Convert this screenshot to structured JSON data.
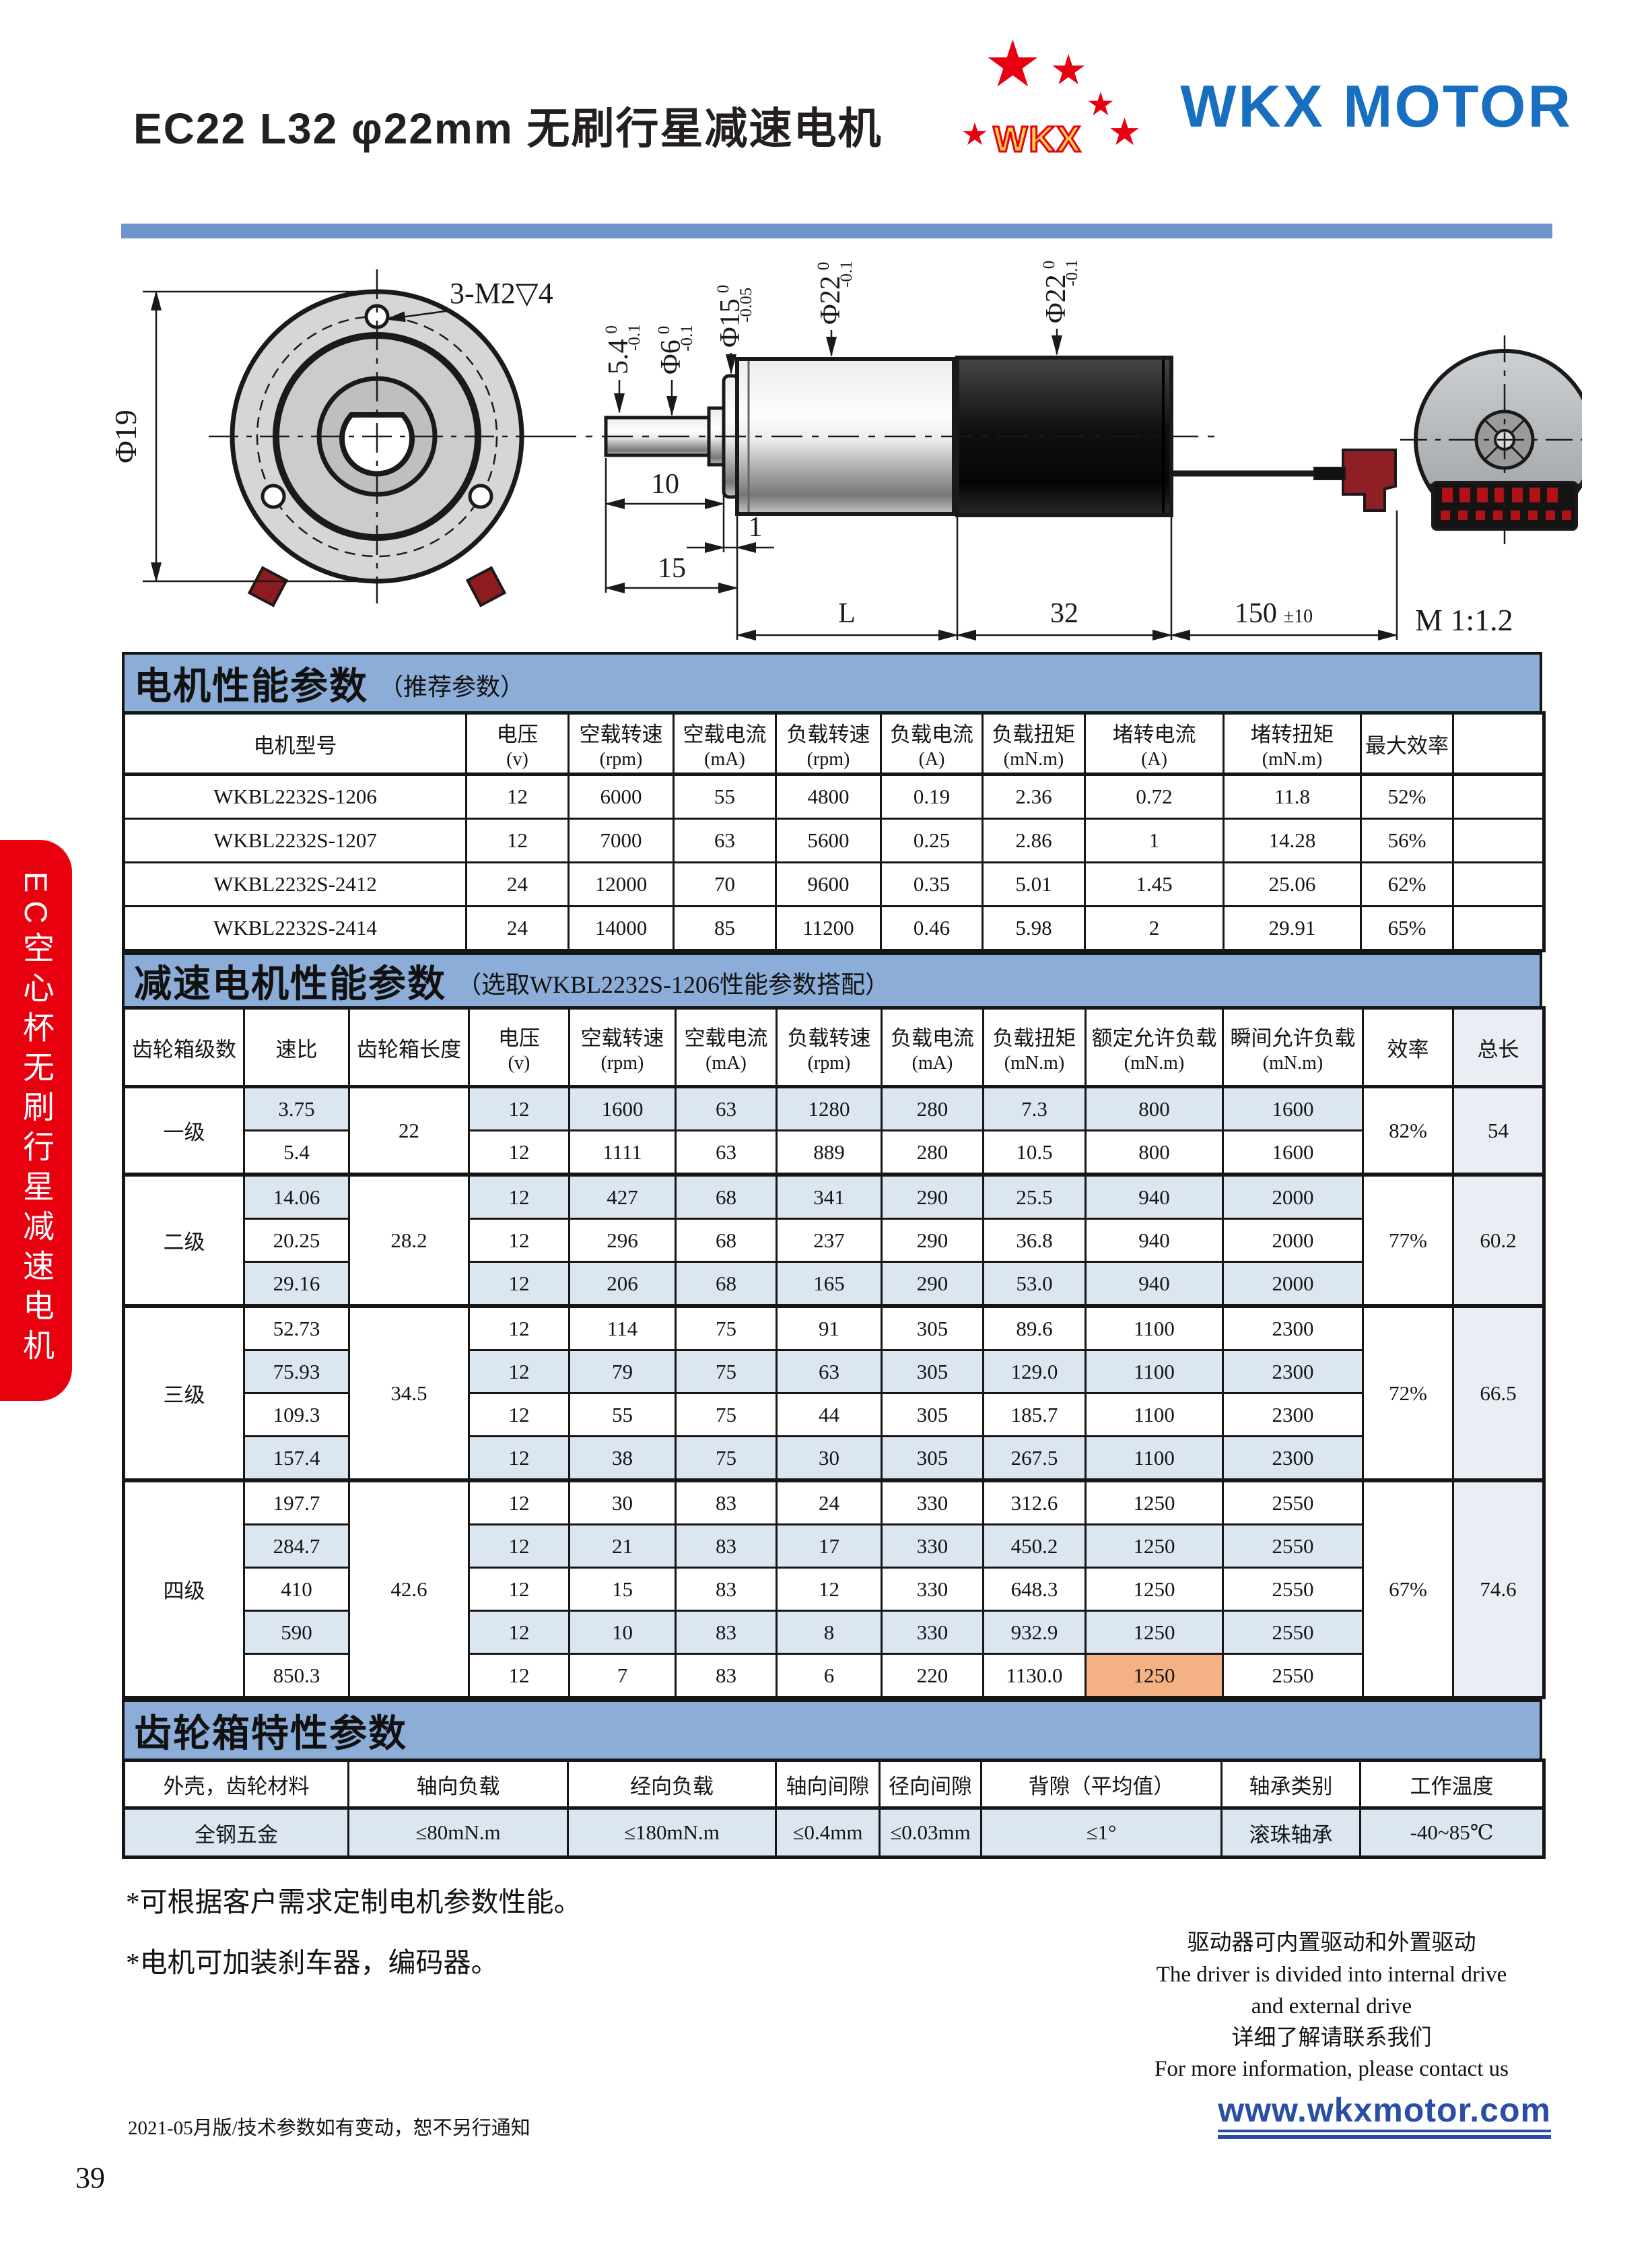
{
  "header": {
    "title": "EC22 L32 φ22mm 无刷行星减速电机",
    "brand": "WKX MOTOR",
    "logo_text": "WKX",
    "star": "★"
  },
  "side_tab": {
    "text": "EC空心杯无刷行星减速电机"
  },
  "drawing": {
    "front_bolt_label": "3-M2▽4",
    "front_dia": "Φ19",
    "dim_5_4": "5.4",
    "dia_6": "Φ6",
    "dia_15": "Φ15",
    "dia_22_gear": "Φ22",
    "dia_22_motor": "Φ22",
    "tol_0": "0",
    "tol_m01": "-0.1",
    "tol_m005": "-0.05",
    "len_10": "10",
    "len_1": "1",
    "len_15": "15",
    "len_L": "L",
    "len_32": "32",
    "len_150": "150",
    "len_150_tol": "±10",
    "scale_note": "M 1:1.2"
  },
  "motor_table": {
    "banner_title": "电机性能参数",
    "banner_sub": "（推荐参数）",
    "headers": [
      {
        "t": "电机型号"
      },
      {
        "t": "电压",
        "u": "(v)"
      },
      {
        "t": "空载转速",
        "u": "(rpm)"
      },
      {
        "t": "空载电流",
        "u": "(mA)"
      },
      {
        "t": "负载转速",
        "u": "(rpm)"
      },
      {
        "t": "负载电流",
        "u": "(A)"
      },
      {
        "t": "负载扭矩",
        "u": "(mN.m)"
      },
      {
        "t": "堵转电流",
        "u": "(A)"
      },
      {
        "t": "堵转扭矩",
        "u": "(mN.m)"
      },
      {
        "t": "最大效率"
      },
      {
        "t": ""
      }
    ],
    "rows": [
      [
        "WKBL2232S-1206",
        "12",
        "6000",
        "55",
        "4800",
        "0.19",
        "2.36",
        "0.72",
        "11.8",
        "52%",
        ""
      ],
      [
        "WKBL2232S-1207",
        "12",
        "7000",
        "63",
        "5600",
        "0.25",
        "2.86",
        "1",
        "14.28",
        "56%",
        ""
      ],
      [
        "WKBL2232S-2412",
        "24",
        "12000",
        "70",
        "9600",
        "0.35",
        "5.01",
        "1.45",
        "25.06",
        "62%",
        ""
      ],
      [
        "WKBL2232S-2414",
        "24",
        "14000",
        "85",
        "11200",
        "0.46",
        "5.98",
        "2",
        "29.91",
        "65%",
        ""
      ]
    ]
  },
  "gear_table": {
    "banner_title": "减速电机性能参数",
    "banner_sub": "（选取WKBL2232S-1206性能参数搭配）",
    "headers": [
      {
        "t": "齿轮箱级数"
      },
      {
        "t": "速比"
      },
      {
        "t": "齿轮箱长度"
      },
      {
        "t": "电压",
        "u": "(v)"
      },
      {
        "t": "空载转速",
        "u": "(rpm)"
      },
      {
        "t": "空载电流",
        "u": "(mA)"
      },
      {
        "t": "负载转速",
        "u": "(rpm)"
      },
      {
        "t": "负载电流",
        "u": "(mA)"
      },
      {
        "t": "负载扭矩",
        "u": "(mN.m)"
      },
      {
        "t": "额定允许负载",
        "u": "(mN.m)"
      },
      {
        "t": "瞬间允许负载",
        "u": "(mN.m)"
      },
      {
        "t": "效率"
      },
      {
        "t": "总长",
        "tint": true
      }
    ],
    "groups": [
      {
        "stage": "一级",
        "length": "22",
        "eff": "82%",
        "total": "54",
        "rows": [
          [
            "3.75",
            "12",
            "1600",
            "63",
            "1280",
            "280",
            "7.3",
            "800",
            "1600"
          ],
          [
            "5.4",
            "12",
            "1111",
            "63",
            "889",
            "280",
            "10.5",
            "800",
            "1600"
          ]
        ]
      },
      {
        "stage": "二级",
        "length": "28.2",
        "eff": "77%",
        "total": "60.2",
        "rows": [
          [
            "14.06",
            "12",
            "427",
            "68",
            "341",
            "290",
            "25.5",
            "940",
            "2000"
          ],
          [
            "20.25",
            "12",
            "296",
            "68",
            "237",
            "290",
            "36.8",
            "940",
            "2000"
          ],
          [
            "29.16",
            "12",
            "206",
            "68",
            "165",
            "290",
            "53.0",
            "940",
            "2000"
          ]
        ]
      },
      {
        "stage": "三级",
        "length": "34.5",
        "eff": "72%",
        "total": "66.5",
        "rows": [
          [
            "52.73",
            "12",
            "114",
            "75",
            "91",
            "305",
            "89.6",
            "1100",
            "2300"
          ],
          [
            "75.93",
            "12",
            "79",
            "75",
            "63",
            "305",
            "129.0",
            "1100",
            "2300"
          ],
          [
            "109.3",
            "12",
            "55",
            "75",
            "44",
            "305",
            "185.7",
            "1100",
            "2300"
          ],
          [
            "157.4",
            "12",
            "38",
            "75",
            "30",
            "305",
            "267.5",
            "1100",
            "2300"
          ]
        ]
      },
      {
        "stage": "四级",
        "length": "42.6",
        "eff": "67%",
        "total": "74.6",
        "highlight": {
          "row": 4,
          "col": 7
        },
        "rows": [
          [
            "197.7",
            "12",
            "30",
            "83",
            "24",
            "330",
            "312.6",
            "1250",
            "2550"
          ],
          [
            "284.7",
            "12",
            "21",
            "83",
            "17",
            "330",
            "450.2",
            "1250",
            "2550"
          ],
          [
            "410",
            "12",
            "15",
            "83",
            "12",
            "330",
            "648.3",
            "1250",
            "2550"
          ],
          [
            "590",
            "12",
            "10",
            "83",
            "8",
            "330",
            "932.9",
            "1250",
            "2550"
          ],
          [
            "850.3",
            "12",
            "7",
            "83",
            "6",
            "220",
            "1130.0",
            "1250",
            "2550"
          ]
        ]
      }
    ]
  },
  "gearbox_table": {
    "banner_title": "齿轮箱特性参数",
    "headers": [
      "外壳，齿轮材料",
      "轴向负载",
      "经向负载",
      "轴向间隙",
      "径向间隙",
      "背隙（平均值）",
      "轴承类别",
      "工作温度"
    ],
    "values": [
      "全钢五金",
      "≤80mN.m",
      "≤180mN.m",
      "≤0.4mm",
      "≤0.03mm",
      "≤1°",
      "滚珠轴承",
      "-40~85℃"
    ]
  },
  "notes": [
    "*可根据客户需求定制电机参数性能。",
    "*电机可加装刹车器，编码器。"
  ],
  "driver_info": [
    "驱动器可内置驱动和外置驱动",
    "The driver is divided into internal drive",
    "and external drive",
    "详细了解请联系我们",
    "For more information, please contact us"
  ],
  "footer": {
    "edition": "2021-05月版/技术参数如有变动，恕不另行通知",
    "website": "www.wkxmotor.com",
    "page": "39"
  }
}
